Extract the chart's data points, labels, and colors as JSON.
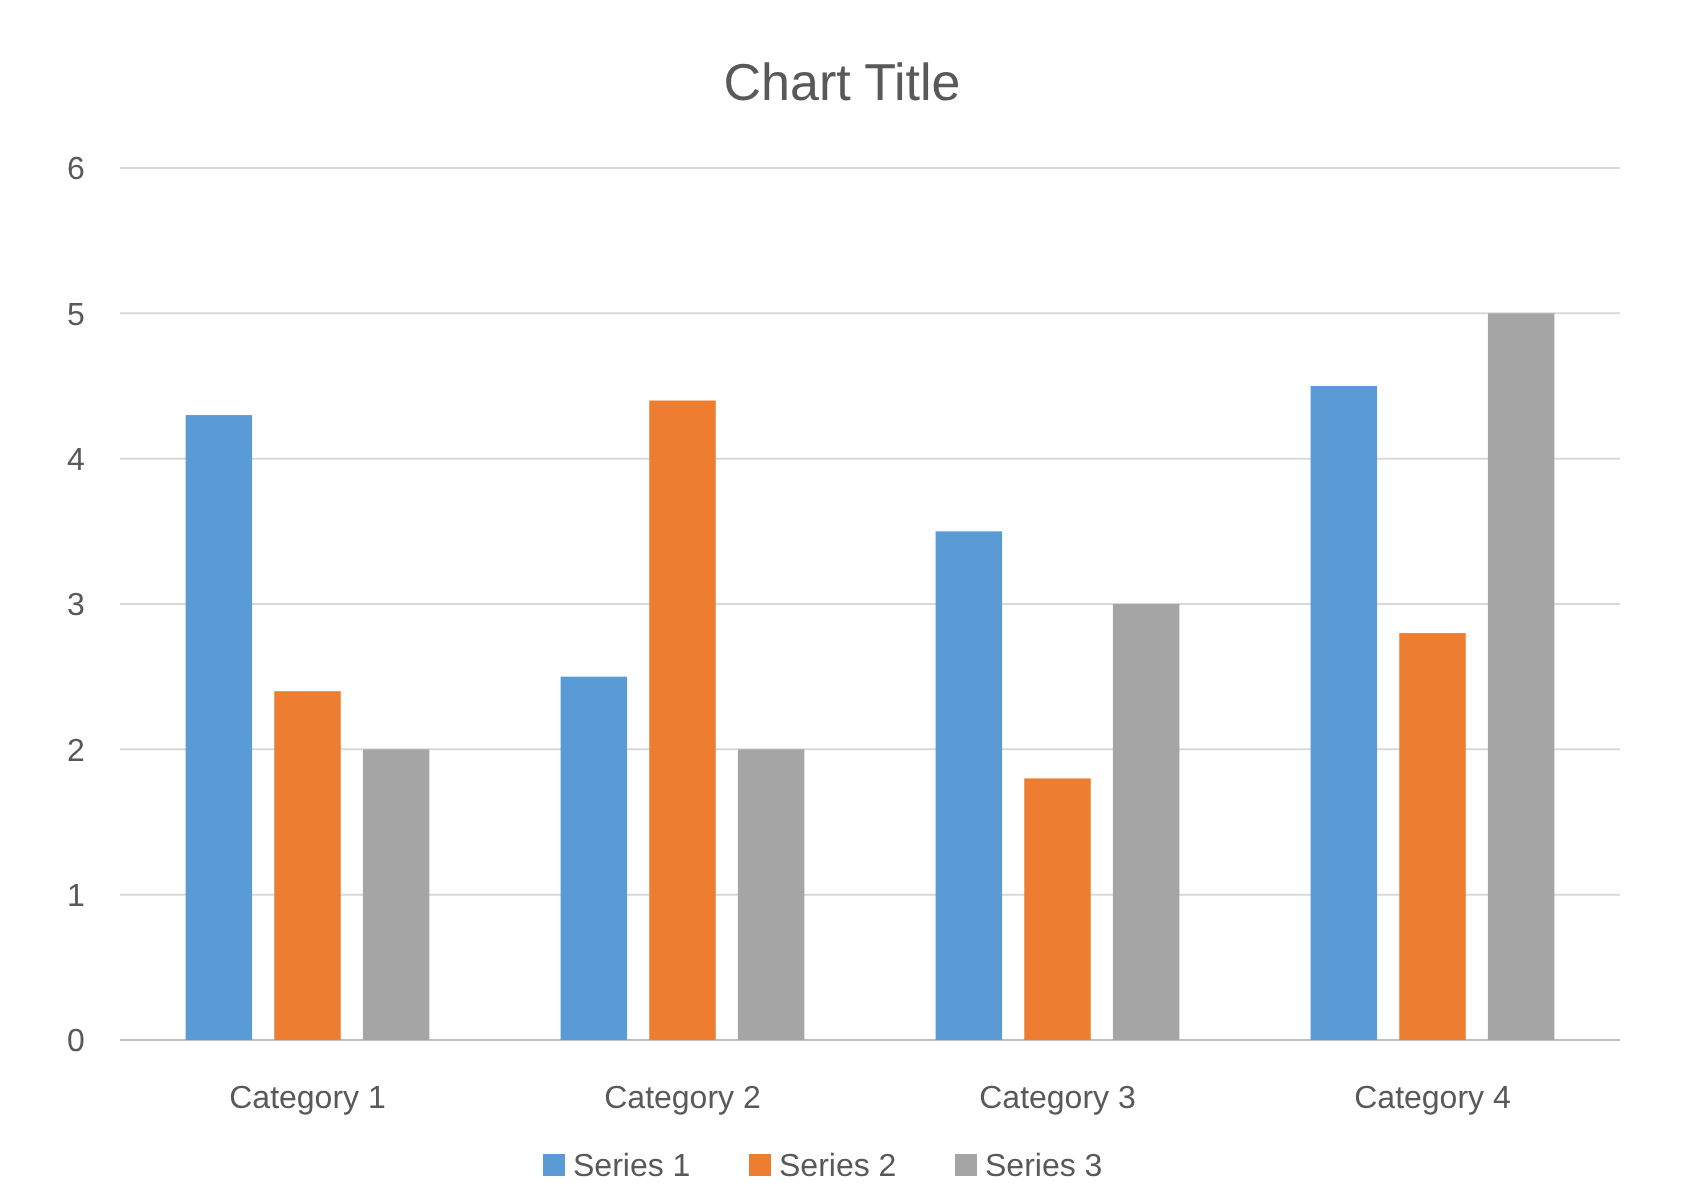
{
  "chart_data": {
    "type": "bar",
    "title": "Chart Title",
    "categories": [
      "Category 1",
      "Category 2",
      "Category 3",
      "Category 4"
    ],
    "series": [
      {
        "name": "Series 1",
        "color": "#5b9bd5",
        "values": [
          4.3,
          2.5,
          3.5,
          4.5
        ]
      },
      {
        "name": "Series 2",
        "color": "#ed7d31",
        "values": [
          2.4,
          4.4,
          1.8,
          2.8
        ]
      },
      {
        "name": "Series 3",
        "color": "#a5a5a5",
        "values": [
          2,
          2,
          3,
          5
        ]
      }
    ],
    "ylim": [
      0,
      6
    ],
    "yticks": [
      0,
      1,
      2,
      3,
      4,
      5,
      6
    ],
    "grid": "y",
    "legend": "bottom"
  }
}
